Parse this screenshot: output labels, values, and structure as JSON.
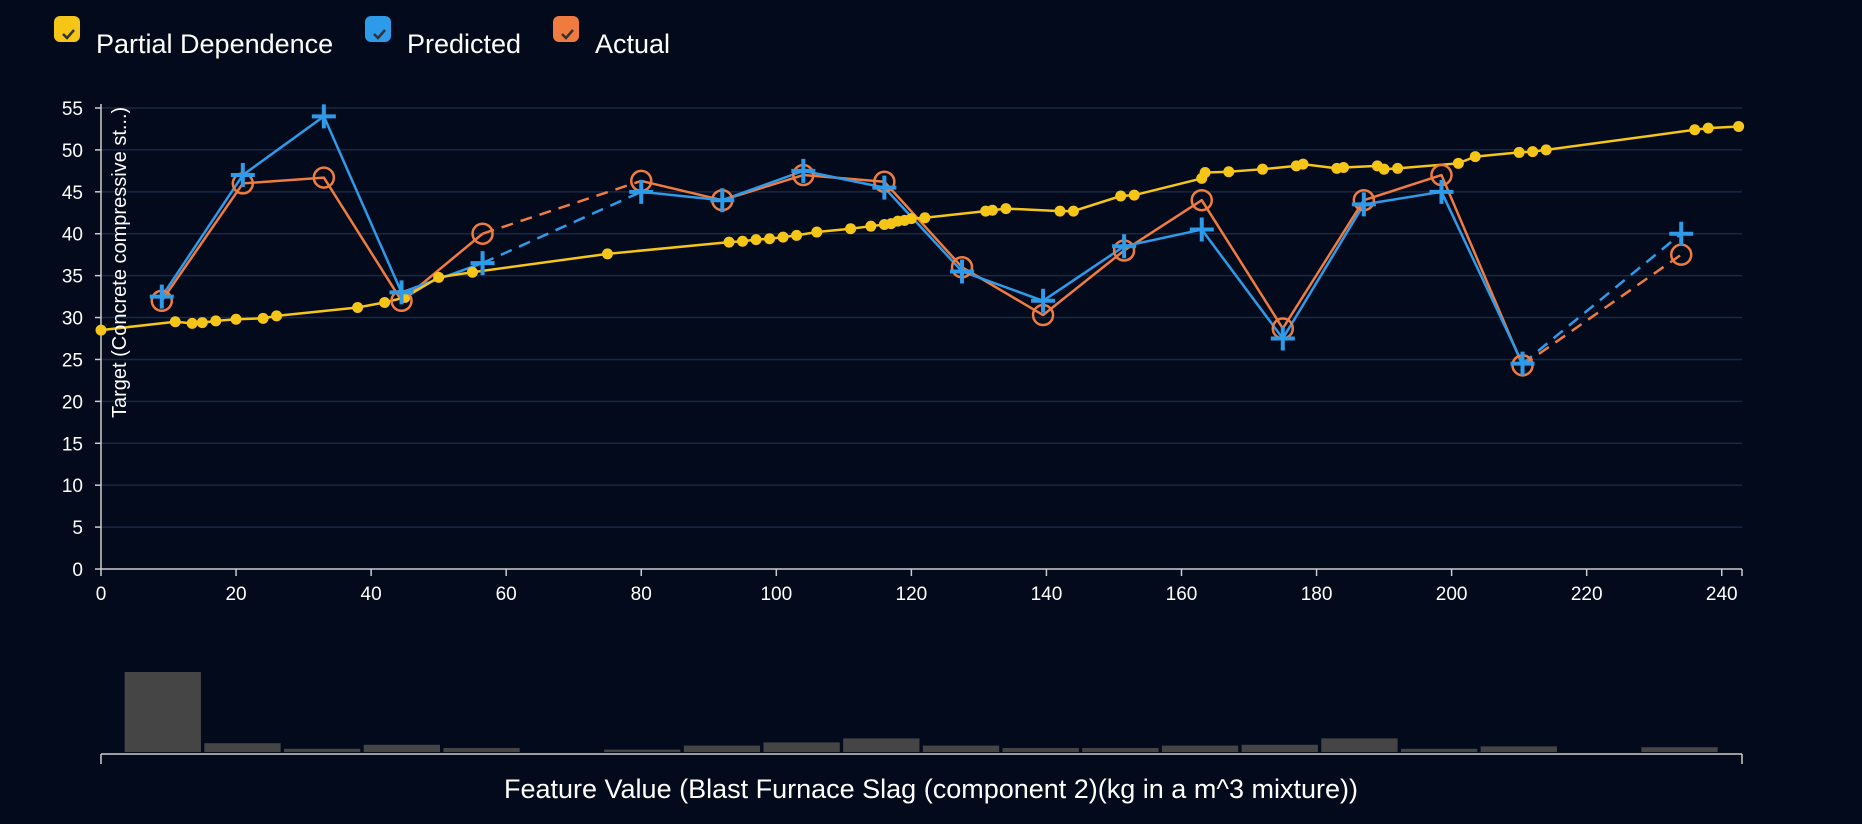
{
  "chart_data": {
    "type": "line",
    "legend": [
      {
        "label": "Partial Dependence",
        "color": "#f5c518"
      },
      {
        "label": "Predicted",
        "color": "#2e9bea"
      },
      {
        "label": "Actual",
        "color": "#f07b3f"
      }
    ],
    "ylabel": "Target (Concrete compressive st...)",
    "xlabel": "Feature Value (Blast Furnace Slag (component 2)(kg in a m^3 mixture))",
    "xlim": [
      0,
      243
    ],
    "ylim": [
      0,
      55
    ],
    "x_ticks": [
      "0",
      "20",
      "40",
      "60",
      "80",
      "100",
      "120",
      "140",
      "160",
      "180",
      "200",
      "220",
      "240"
    ],
    "y_ticks": [
      "0",
      "5",
      "10",
      "15",
      "20",
      "25",
      "30",
      "35",
      "40",
      "45",
      "50",
      "55"
    ],
    "grid": "horizontal",
    "legend_position": "top-left",
    "series": [
      {
        "name": "Partial Dependence",
        "color": "#f5c518",
        "x": [
          0,
          11,
          13.5,
          15,
          17,
          20,
          24,
          26,
          38,
          42,
          45,
          50,
          55,
          75,
          93,
          95,
          97,
          99,
          101,
          103,
          106,
          111,
          114,
          116,
          117,
          118,
          119,
          120,
          122,
          131,
          132,
          134,
          142,
          144,
          151,
          153,
          163,
          163.5,
          167,
          172,
          177,
          178,
          183,
          184,
          189,
          190,
          192,
          201,
          203.5,
          210,
          212,
          214,
          236,
          238,
          242.5
        ],
        "y": [
          28.5,
          29.5,
          29.3,
          29.4,
          29.6,
          29.8,
          29.9,
          30.2,
          31.2,
          31.8,
          32.4,
          34.8,
          35.4,
          37.6,
          39.0,
          39.1,
          39.3,
          39.4,
          39.6,
          39.8,
          40.2,
          40.6,
          40.9,
          41.1,
          41.2,
          41.5,
          41.6,
          41.8,
          41.9,
          42.7,
          42.8,
          43.0,
          42.7,
          42.7,
          44.5,
          44.6,
          46.6,
          47.3,
          47.4,
          47.7,
          48.1,
          48.3,
          47.8,
          47.9,
          48.1,
          47.7,
          47.8,
          48.4,
          49.2,
          49.7,
          49.8,
          50.0,
          52.4,
          52.6,
          52.8
        ]
      },
      {
        "name": "Predicted",
        "color": "#2e9bea",
        "segments": [
          {
            "style": "solid",
            "points": [
              [
                9,
                32.5
              ],
              [
                21,
                47
              ],
              [
                33,
                54
              ],
              [
                44.5,
                33
              ]
            ]
          },
          {
            "style": "solid",
            "points": [
              [
                44.5,
                33
              ],
              [
                56.5,
                36.5
              ]
            ]
          },
          {
            "style": "dashed",
            "points": [
              [
                56.5,
                36.5
              ],
              [
                80,
                45
              ]
            ]
          },
          {
            "style": "solid",
            "points": [
              [
                80,
                45
              ],
              [
                92,
                44
              ],
              [
                104,
                47.5
              ],
              [
                116,
                45.5
              ],
              [
                127.5,
                35.5
              ],
              [
                139.5,
                32
              ],
              [
                151.5,
                38.5
              ],
              [
                163,
                40.5
              ],
              [
                175,
                27.5
              ],
              [
                187,
                43.5
              ],
              [
                198.5,
                45
              ],
              [
                210.5,
                24.5
              ]
            ]
          },
          {
            "style": "dashed",
            "points": [
              [
                210.5,
                24.5
              ],
              [
                234,
                40
              ]
            ]
          }
        ],
        "markers": [
          [
            9,
            32.5
          ],
          [
            21,
            47
          ],
          [
            33,
            54
          ],
          [
            44.5,
            33
          ],
          [
            56.5,
            36.5
          ],
          [
            80,
            45
          ],
          [
            92,
            44
          ],
          [
            104,
            47.5
          ],
          [
            116,
            45.5
          ],
          [
            127.5,
            35.5
          ],
          [
            139.5,
            32
          ],
          [
            151.5,
            38.5
          ],
          [
            163,
            40.5
          ],
          [
            175,
            27.5
          ],
          [
            187,
            43.5
          ],
          [
            198.5,
            45
          ],
          [
            210.5,
            24.5
          ],
          [
            234,
            40
          ]
        ]
      },
      {
        "name": "Actual",
        "color": "#f07b3f",
        "segments": [
          {
            "style": "solid",
            "points": [
              [
                9,
                32
              ],
              [
                21,
                46
              ],
              [
                33,
                46.7
              ],
              [
                44.5,
                32
              ],
              [
                56.5,
                40
              ]
            ]
          },
          {
            "style": "dashed",
            "points": [
              [
                56.5,
                40
              ],
              [
                80,
                46.3
              ]
            ]
          },
          {
            "style": "solid",
            "points": [
              [
                80,
                46.3
              ],
              [
                92,
                44
              ],
              [
                104,
                47
              ],
              [
                116,
                46.2
              ],
              [
                127.5,
                36
              ],
              [
                139.5,
                30.3
              ],
              [
                151.5,
                38
              ],
              [
                163,
                44
              ],
              [
                175,
                28.7
              ],
              [
                187,
                44
              ],
              [
                198.5,
                47
              ],
              [
                210.5,
                24.3
              ]
            ]
          },
          {
            "style": "dashed",
            "points": [
              [
                210.5,
                24.3
              ],
              [
                234,
                37.5
              ]
            ]
          }
        ],
        "markers": [
          [
            9,
            32
          ],
          [
            21,
            46
          ],
          [
            33,
            46.7
          ],
          [
            44.5,
            32
          ],
          [
            56.5,
            40
          ],
          [
            80,
            46.3
          ],
          [
            92,
            44
          ],
          [
            104,
            47
          ],
          [
            116,
            46.2
          ],
          [
            127.5,
            36
          ],
          [
            139.5,
            30.3
          ],
          [
            151.5,
            38
          ],
          [
            163,
            44
          ],
          [
            175,
            28.7
          ],
          [
            187,
            44
          ],
          [
            198.5,
            47
          ],
          [
            210.5,
            24.3
          ],
          [
            234,
            37.5
          ]
        ]
      }
    ],
    "histogram": {
      "color": "#454545",
      "bins": [
        {
          "x0": 3.5,
          "x1": 14.8,
          "value": 1.0
        },
        {
          "x0": 15.3,
          "x1": 26.6,
          "value": 0.11
        },
        {
          "x0": 27.1,
          "x1": 38.4,
          "value": 0.04
        },
        {
          "x0": 38.9,
          "x1": 50.2,
          "value": 0.09
        },
        {
          "x0": 50.7,
          "x1": 62.0,
          "value": 0.05
        },
        {
          "x0": 74.5,
          "x1": 85.8,
          "value": 0.03
        },
        {
          "x0": 86.3,
          "x1": 97.6,
          "value": 0.08
        },
        {
          "x0": 98.1,
          "x1": 109.4,
          "value": 0.12
        },
        {
          "x0": 109.9,
          "x1": 121.2,
          "value": 0.17
        },
        {
          "x0": 121.7,
          "x1": 133.0,
          "value": 0.08
        },
        {
          "x0": 133.5,
          "x1": 144.8,
          "value": 0.05
        },
        {
          "x0": 145.3,
          "x1": 156.6,
          "value": 0.05
        },
        {
          "x0": 157.1,
          "x1": 168.4,
          "value": 0.08
        },
        {
          "x0": 168.9,
          "x1": 180.2,
          "value": 0.09
        },
        {
          "x0": 180.7,
          "x1": 192.0,
          "value": 0.17
        },
        {
          "x0": 192.5,
          "x1": 203.8,
          "value": 0.04
        },
        {
          "x0": 204.3,
          "x1": 215.6,
          "value": 0.07
        },
        {
          "x0": 228.1,
          "x1": 239.4,
          "value": 0.06
        }
      ]
    }
  }
}
